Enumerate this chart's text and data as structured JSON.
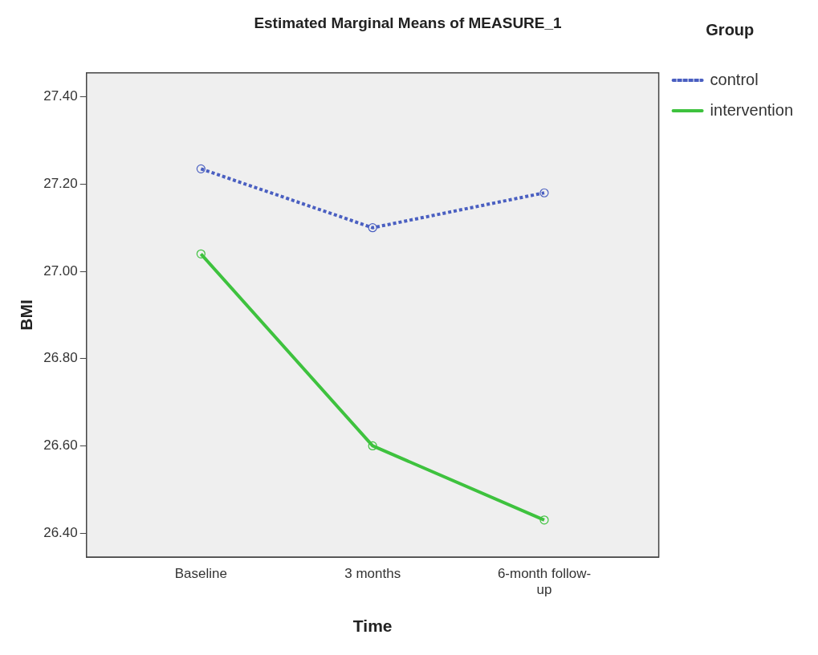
{
  "chart_data": {
    "type": "line",
    "title": "Estimated Marginal Means of MEASURE_1",
    "xlabel": "Time",
    "ylabel": "BMI",
    "legend_title": "Group",
    "categories": [
      "Baseline",
      "3 months",
      "6-month follow-up"
    ],
    "series": [
      {
        "name": "control",
        "color": "#4a5fc1",
        "values": [
          27.235,
          27.1,
          27.18
        ],
        "line_style": "dotted"
      },
      {
        "name": "intervention",
        "color": "#3ec23e",
        "values": [
          27.04,
          26.6,
          26.43
        ],
        "line_style": "solid"
      }
    ],
    "ylim": [
      26.345,
      27.455
    ],
    "yticks": [
      {
        "value": 26.4,
        "label": "26.40"
      },
      {
        "value": 26.6,
        "label": "26.60"
      },
      {
        "value": 26.8,
        "label": "26.80"
      },
      {
        "value": 27.0,
        "label": "27.00"
      },
      {
        "value": 27.2,
        "label": "27.20"
      },
      {
        "value": 27.4,
        "label": "27.40"
      }
    ],
    "grid": false,
    "legend": "top right",
    "marker": "circle"
  }
}
